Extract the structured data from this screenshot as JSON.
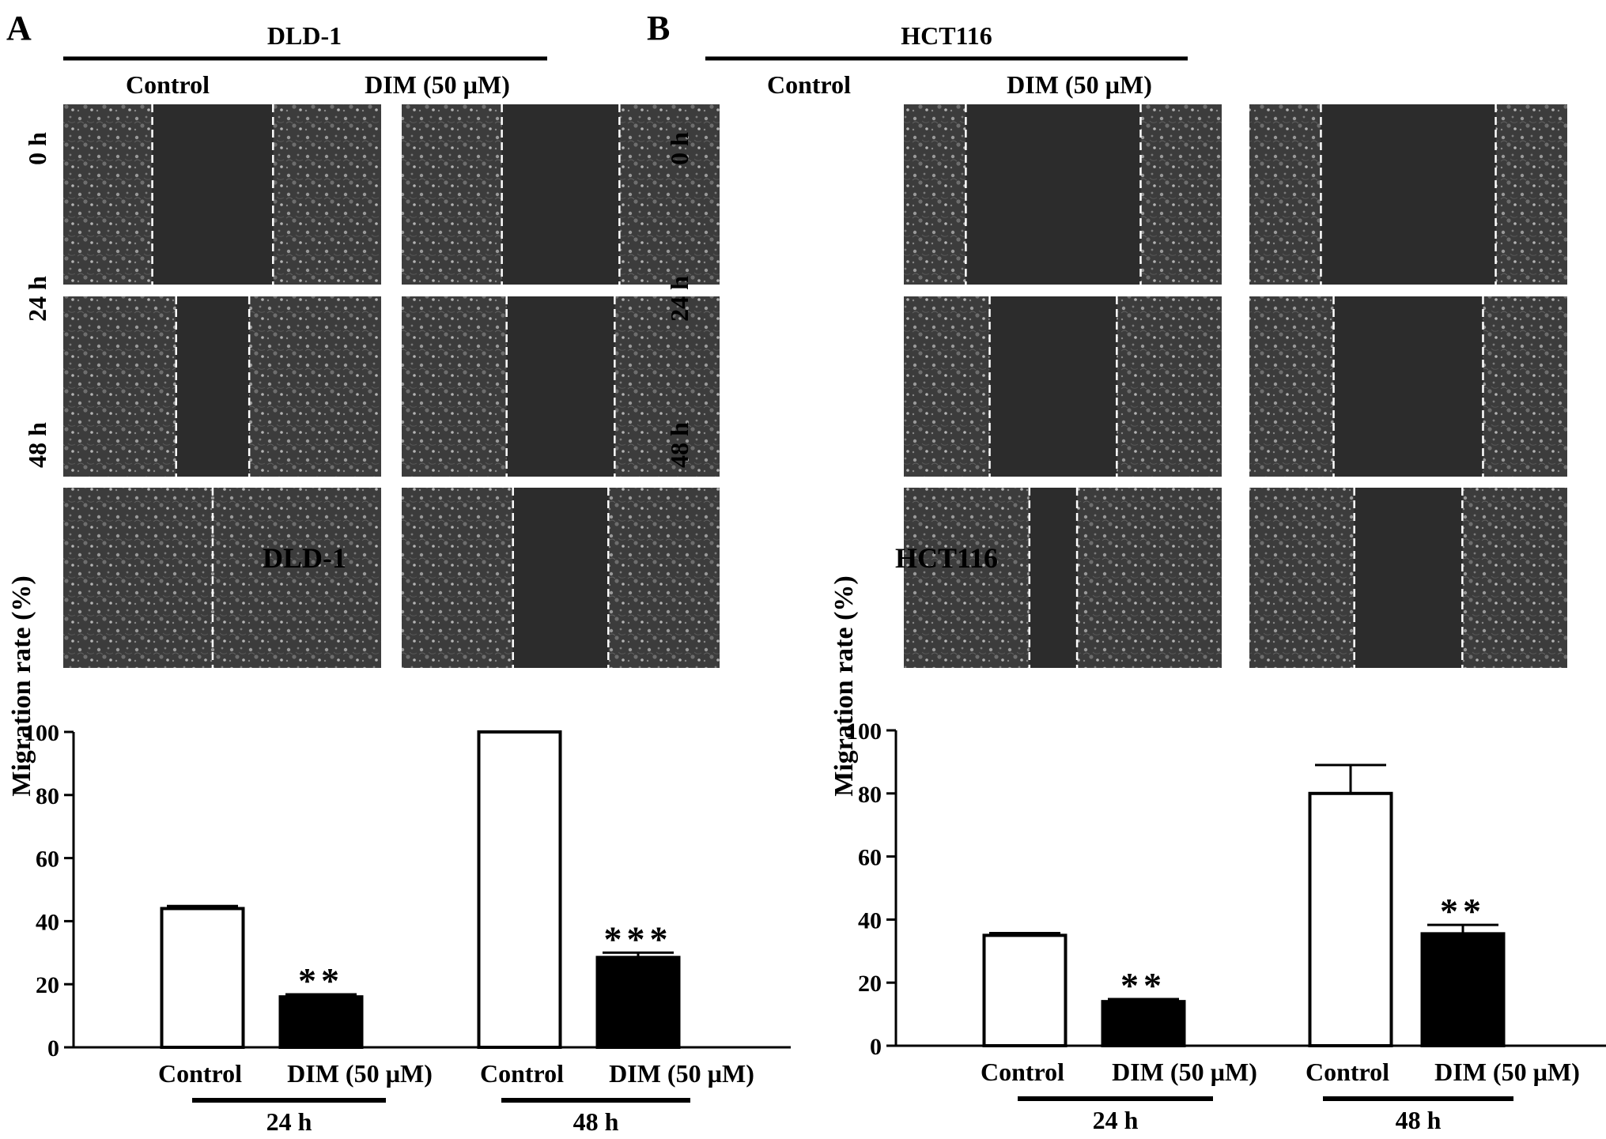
{
  "panels": [
    {
      "letter": "A",
      "cell_line": "DLD-1",
      "conditions": [
        "Control",
        "DIM (50 µM)"
      ],
      "timepoints": [
        "0 h",
        "24 h",
        "48 h"
      ],
      "micrographs": [
        {
          "timepoint": "0 h",
          "condition": "Control",
          "relative_wound_width": 0.38
        },
        {
          "timepoint": "0 h",
          "condition": "DIM (50 µM)",
          "relative_wound_width": 0.37
        },
        {
          "timepoint": "24 h",
          "condition": "Control",
          "relative_wound_width": 0.23
        },
        {
          "timepoint": "24 h",
          "condition": "DIM (50 µM)",
          "relative_wound_width": 0.34
        },
        {
          "timepoint": "48 h",
          "condition": "Control",
          "relative_wound_width": 0.0
        },
        {
          "timepoint": "48 h",
          "condition": "DIM (50 µM)",
          "relative_wound_width": 0.3
        }
      ]
    },
    {
      "letter": "B",
      "cell_line": "HCT116",
      "conditions": [
        "Control",
        "DIM (50 µM)"
      ],
      "timepoints": [
        "0 h",
        "24 h",
        "48 h"
      ],
      "micrographs": [
        {
          "timepoint": "0 h",
          "condition": "Control",
          "relative_wound_width": 0.55
        },
        {
          "timepoint": "0 h",
          "condition": "DIM (50 µM)",
          "relative_wound_width": 0.55
        },
        {
          "timepoint": "24 h",
          "condition": "Control",
          "relative_wound_width": 0.4
        },
        {
          "timepoint": "24 h",
          "condition": "DIM (50 µM)",
          "relative_wound_width": 0.47
        },
        {
          "timepoint": "48 h",
          "condition": "Control",
          "relative_wound_width": 0.15
        },
        {
          "timepoint": "48 h",
          "condition": "DIM (50 µM)",
          "relative_wound_width": 0.34
        }
      ]
    }
  ],
  "colors": {
    "control_fill": "#ffffff",
    "dim_fill": "#000000",
    "micrograph_bg": "#3a3a3a",
    "wound_gap": "#2c2c2c"
  },
  "chart_data": [
    {
      "type": "bar",
      "title": "DLD-1",
      "ylabel": "Migration rate (%)",
      "xlabel": "",
      "ylim": [
        0,
        100
      ],
      "yticks": [
        0,
        20,
        40,
        60,
        80,
        100
      ],
      "grid": false,
      "groups": [
        "24 h",
        "48 h"
      ],
      "categories": [
        "Control",
        "DIM (50 µM)",
        "Control",
        "DIM (50 µM)"
      ],
      "values": [
        44,
        16,
        100,
        28.5
      ],
      "errors": [
        0.8,
        0.8,
        0,
        1.5
      ],
      "fills": [
        "#ffffff",
        "#000000",
        "#ffffff",
        "#000000"
      ],
      "significance": [
        "",
        "**",
        "",
        "***"
      ]
    },
    {
      "type": "bar",
      "title": "HCT116",
      "ylabel": "Migration rate (%)",
      "xlabel": "",
      "ylim": [
        0,
        100
      ],
      "yticks": [
        0,
        20,
        40,
        60,
        80,
        100
      ],
      "grid": false,
      "groups": [
        "24 h",
        "48 h"
      ],
      "categories": [
        "Control",
        "DIM (50 µM)",
        "Control",
        "DIM (50 µM)"
      ],
      "values": [
        35,
        14,
        80,
        35.5
      ],
      "errors": [
        0.7,
        0.8,
        9,
        2.8
      ],
      "fills": [
        "#ffffff",
        "#000000",
        "#ffffff",
        "#000000"
      ],
      "significance": [
        "",
        "**",
        "",
        "**"
      ]
    }
  ]
}
